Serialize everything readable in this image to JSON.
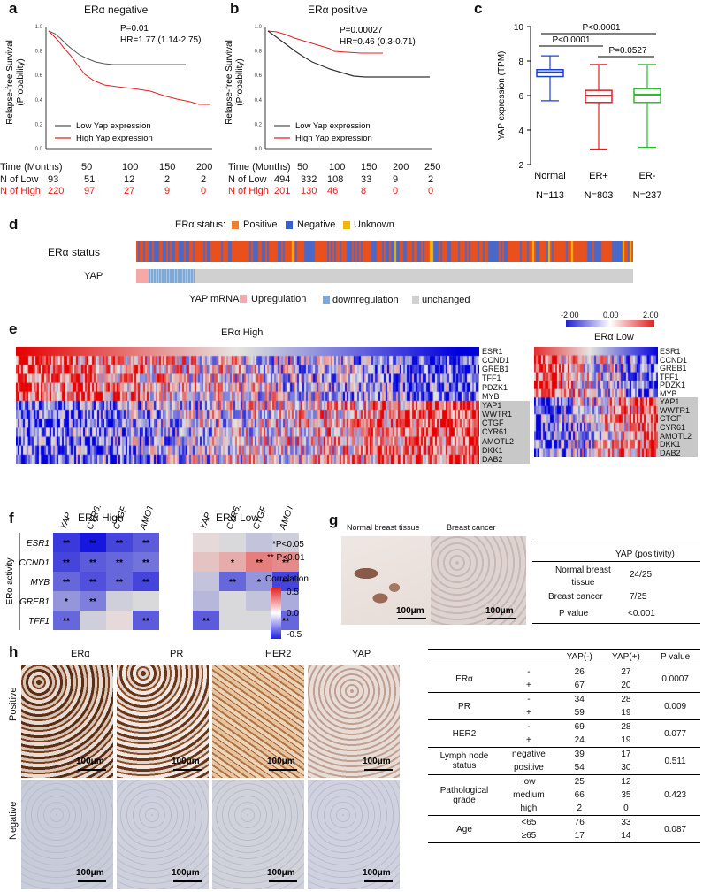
{
  "panel_a": {
    "label": "a",
    "title": "ERα  negative",
    "p": "P=0.01",
    "hr": "HR=1.77 (1.14-2.75)",
    "ylabel": "Relapse-free Survival\n(Probability)",
    "legend": [
      "Low Yap expression",
      "High Yap expression"
    ],
    "yticks": [
      "0.0",
      "0.2",
      "0.4",
      "0.6",
      "0.8",
      "1.0"
    ],
    "time_label": "Time (Months)",
    "time_ticks": [
      "50",
      "100",
      "150",
      "200"
    ],
    "n_low_label": "N of Low",
    "n_low": [
      "93",
      "51",
      "12",
      "2",
      "2"
    ],
    "n_high_label": "N of High",
    "n_high": [
      "220",
      "97",
      "27",
      "9",
      "0"
    ]
  },
  "panel_b": {
    "label": "b",
    "title": "ERα positive",
    "p": "P=0.00027",
    "hr": "HR=0.46 (0.3-0.71)",
    "ylabel": "Relapse-free Survival\n(Probability)",
    "legend": [
      "Low Yap expression",
      "High Yap expression"
    ],
    "yticks": [
      "0.0",
      "0.2",
      "0.4",
      "0.6",
      "0.8",
      "1.0"
    ],
    "time_label": "Time (Months)",
    "time_ticks": [
      "50",
      "100",
      "150",
      "200",
      "250"
    ],
    "n_low_label": "N of Low",
    "n_low": [
      "494",
      "332",
      "108",
      "33",
      "9",
      "2"
    ],
    "n_high_label": "N of High",
    "n_high": [
      "201",
      "130",
      "46",
      "8",
      "0",
      "0"
    ]
  },
  "panel_c": {
    "label": "c",
    "ylabel": "YAP expression (TPM)",
    "yticks": [
      "2",
      "4",
      "6",
      "8",
      "10"
    ],
    "groups": [
      {
        "name": "Normal",
        "n": "N=113",
        "color": "#1a3fd6"
      },
      {
        "name": "ER+",
        "n": "N=803",
        "color": "#e02020"
      },
      {
        "name": "ER-",
        "n": "N=237",
        "color": "#2dbb2d"
      }
    ],
    "pvals": [
      "P<0.0001",
      "P<0.0001",
      "P=0.0527"
    ]
  },
  "panel_d": {
    "label": "d",
    "status_legend_title": "ERα status:",
    "status_legend": [
      "Positive",
      "Negative",
      "Unknown"
    ],
    "row1": "ERα status",
    "row2": "YAP",
    "mrna_title": "YAP mRNA:",
    "mrna_legend": [
      "Upregulation",
      "downregulation",
      "unchanged"
    ]
  },
  "panel_e": {
    "label": "e",
    "title_high": "ERα High",
    "title_low": "ERα Low",
    "scale": [
      "-2.00",
      "0.00",
      "2.00"
    ],
    "genes": [
      "ESR1",
      "CCND1",
      "GREB1",
      "TFF1",
      "PDZK1",
      "MYB",
      "YAP1",
      "WWTR1",
      "CTGF",
      "CYR61",
      "AMOTL2",
      "DKK1",
      "DAB2"
    ]
  },
  "panel_f": {
    "label": "f",
    "title_high": "ERα High",
    "title_low": "ERα Low",
    "cols": [
      "YAP",
      "CYR61",
      "CTGF",
      "AMOTL2"
    ],
    "rows": [
      "ESR1",
      "CCND1",
      "MYB",
      "GREB1",
      "TFF1"
    ],
    "row_axis": "ERα activity",
    "col_axis": "YAP activity",
    "sig1": "*P<0.05",
    "sig2": "** P<0.01",
    "scale_title": "Correlation",
    "scale": [
      "0.5",
      "0.0",
      "-0.5"
    ],
    "high_stars": [
      [
        "**",
        "**",
        "**",
        "**"
      ],
      [
        "**",
        "**",
        "**",
        "**"
      ],
      [
        "**",
        "**",
        "**",
        "**"
      ],
      [
        "*",
        "**",
        "",
        ""
      ],
      [
        "**",
        "",
        "",
        "**"
      ]
    ],
    "low_stars": [
      [
        "",
        "",
        "",
        ""
      ],
      [
        "",
        "*",
        "**",
        "**"
      ],
      [
        "",
        "**",
        "*",
        "**"
      ],
      [
        "",
        "",
        "",
        ""
      ],
      [
        "**",
        "",
        "",
        "**"
      ]
    ]
  },
  "panel_g": {
    "label": "g",
    "img1": "Normal breast tissue",
    "img2": "Breast cancer",
    "scale": "100μm",
    "col": "YAP (positivity)",
    "rows": [
      [
        "Normal breast\ntissue",
        "24/25"
      ],
      [
        "Breast cancer",
        "7/25"
      ],
      [
        "P value",
        "<0.001"
      ]
    ]
  },
  "panel_h": {
    "label": "h",
    "cols": [
      "ERα",
      "PR",
      "HER2",
      "YAP"
    ],
    "rows": [
      "Positive",
      "Negative"
    ],
    "scale": "100μm",
    "table_head": [
      "",
      "",
      "YAP(-)",
      "YAP(+)",
      "P value"
    ],
    "table": [
      {
        "name": "ERα",
        "sub": [
          [
            "-",
            "26",
            "27"
          ],
          [
            "+",
            "67",
            "20"
          ]
        ],
        "p": "0.0007"
      },
      {
        "name": "PR",
        "sub": [
          [
            "-",
            "34",
            "28"
          ],
          [
            "+",
            "59",
            "19"
          ]
        ],
        "p": "0.009"
      },
      {
        "name": "HER2",
        "sub": [
          [
            "-",
            "69",
            "28"
          ],
          [
            "+",
            "24",
            "19"
          ]
        ],
        "p": "0.077"
      },
      {
        "name": "Lymph node\nstatus",
        "sub": [
          [
            "negative",
            "39",
            "17"
          ],
          [
            "positive",
            "54",
            "30"
          ]
        ],
        "p": "0.511"
      },
      {
        "name": "Pathological\ngrade",
        "sub": [
          [
            "low",
            "25",
            "12"
          ],
          [
            "medium",
            "66",
            "35"
          ],
          [
            "high",
            "2",
            "0"
          ]
        ],
        "p": "0.423"
      },
      {
        "name": "Age",
        "sub": [
          [
            "<65",
            "76",
            "33"
          ],
          [
            "≥65",
            "17",
            "14"
          ]
        ],
        "p": "0.087"
      }
    ]
  }
}
